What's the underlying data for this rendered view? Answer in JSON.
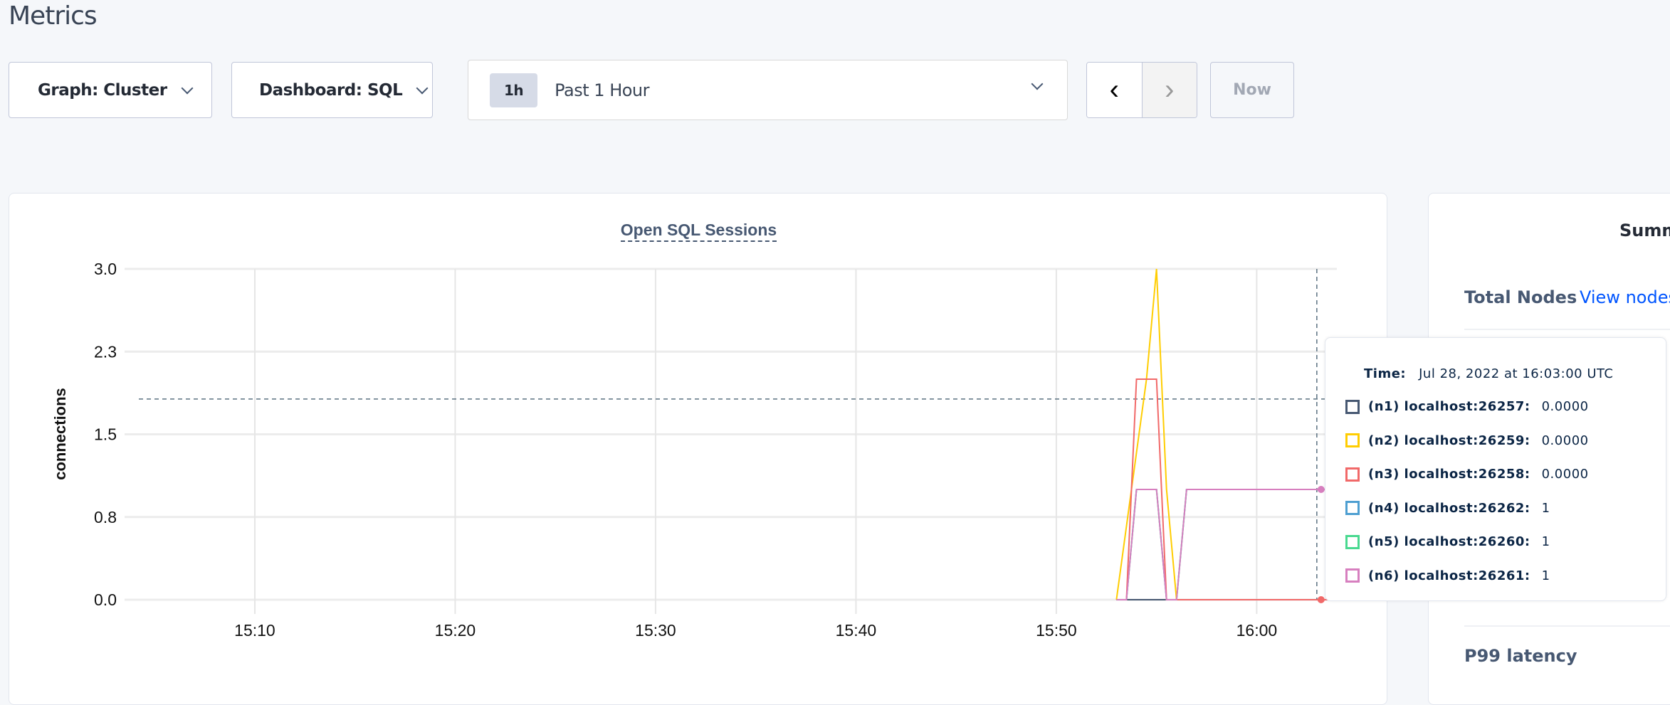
{
  "page": {
    "title": "Metrics"
  },
  "toolbar": {
    "graph_label": "Graph: Cluster",
    "dashboard_label": "Dashboard: SQL",
    "time_badge": "1h",
    "time_label": "Past 1 Hour",
    "prev_icon": "chevron-left-icon",
    "next_icon": "chevron-right-icon",
    "now_label": "Now"
  },
  "chart_data": {
    "type": "line",
    "title": "Open SQL Sessions",
    "ylabel": "connections",
    "xlabel": "",
    "ylim": [
      0,
      3
    ],
    "xlim": [
      "15:03:30",
      "16:04:00"
    ],
    "yticks": [
      "0.0",
      "0.8",
      "1.5",
      "2.3",
      "3.0"
    ],
    "ytick_values": [
      0,
      0.75,
      1.5,
      2.25,
      3
    ],
    "xticks": [
      "15:10",
      "15:20",
      "15:30",
      "15:40",
      "15:50",
      "16:00"
    ],
    "grid": true,
    "hover": {
      "time": "16:03:00",
      "value": 1.82
    },
    "series": [
      {
        "name": "(n1) localhost:26257",
        "color": "#475872",
        "x": [
          "15:53:00",
          "15:53:30",
          "15:54:00",
          "15:55:00",
          "15:55:30",
          "15:56:00",
          "16:03:00",
          "16:04:00"
        ],
        "y": [
          0,
          0,
          0,
          0,
          0,
          0,
          0,
          0
        ]
      },
      {
        "name": "(n4) localhost:26262",
        "color": "#4e9fd1",
        "x": [
          "15:53:00",
          "15:53:30",
          "15:54:00",
          "15:55:00",
          "15:55:30",
          "15:56:00",
          "15:56:30",
          "16:03:00",
          "16:04:00"
        ],
        "y": [
          0,
          0,
          1,
          1,
          0,
          0,
          1,
          1,
          1
        ]
      },
      {
        "name": "(n5) localhost:26260",
        "color": "#49d990",
        "x": [
          "15:53:00",
          "15:53:30",
          "15:54:00",
          "15:55:00",
          "15:55:30",
          "15:56:00",
          "15:56:30",
          "16:03:00",
          "16:04:00"
        ],
        "y": [
          0,
          0,
          1,
          1,
          0,
          0,
          1,
          1,
          1
        ]
      },
      {
        "name": "(n2) localhost:26259",
        "color": "#ffcd02",
        "x": [
          "15:53:00",
          "15:54:30",
          "15:55:00",
          "15:55:30",
          "15:56:00",
          "16:03:00"
        ],
        "y": [
          0,
          2,
          3,
          1,
          0,
          0
        ]
      },
      {
        "name": "(n3) localhost:26258",
        "color": "#f16969",
        "x": [
          "15:53:00",
          "15:53:30",
          "15:54:00",
          "15:55:00",
          "15:55:30",
          "16:03:00",
          "16:04:00"
        ],
        "y": [
          0,
          0,
          2,
          2,
          0,
          0,
          0
        ]
      },
      {
        "name": "(n6) localhost:26261",
        "color": "#d77fbf",
        "x": [
          "15:53:00",
          "15:53:30",
          "15:54:00",
          "15:55:00",
          "15:55:30",
          "15:56:00",
          "15:56:30",
          "16:03:00",
          "16:04:00"
        ],
        "y": [
          0,
          0,
          1,
          1,
          0,
          0,
          1,
          1,
          1
        ]
      }
    ]
  },
  "tooltip": {
    "time_label": "Time:",
    "time_value": "Jul 28, 2022 at 16:03:00 UTC",
    "rows": [
      {
        "label": "(n1) localhost:26257:",
        "value": "0.0000",
        "color": "#475872"
      },
      {
        "label": "(n2) localhost:26259:",
        "value": "0.0000",
        "color": "#ffcd02"
      },
      {
        "label": "(n3) localhost:26258:",
        "value": "0.0000",
        "color": "#f16969"
      },
      {
        "label": "(n4) localhost:26262:",
        "value": "1",
        "color": "#4e9fd1"
      },
      {
        "label": "(n5) localhost:26260:",
        "value": "1",
        "color": "#49d990"
      },
      {
        "label": "(n6) localhost:26261:",
        "value": "1",
        "color": "#d77fbf"
      }
    ]
  },
  "summary": {
    "title": "Summ",
    "total_nodes_label": "Total Nodes",
    "view_nodes_link": "View nodes",
    "p99_label": "P99 latency"
  }
}
